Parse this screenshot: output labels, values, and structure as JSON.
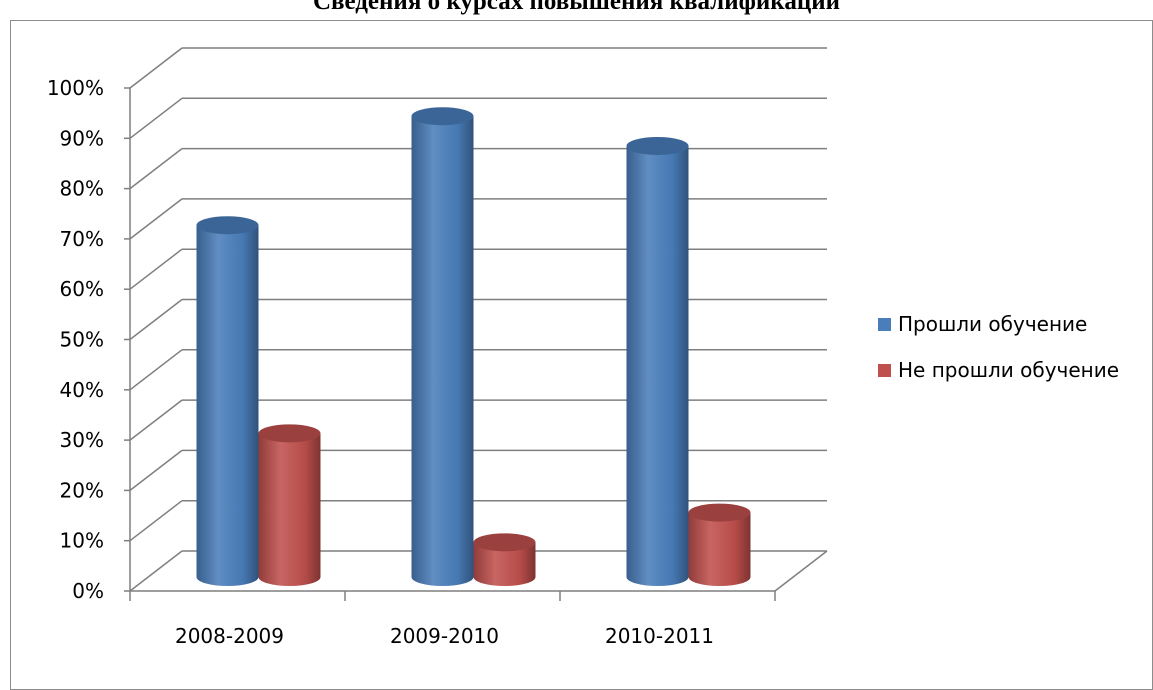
{
  "chart_data": {
    "type": "bar",
    "title": "Сведения о курсах повышения квалификации",
    "categories": [
      "2008-2009",
      "2009-2010",
      "2010-2011"
    ],
    "series": [
      {
        "name": "Прошли обучение",
        "values": [
          71,
          93,
          87
        ],
        "color": "#4a7ebb"
      },
      {
        "name": "Не прошли обучение",
        "values": [
          29,
          7,
          13
        ],
        "color": "#c0504d"
      }
    ],
    "ylim": [
      0,
      100
    ],
    "yticks": [
      "0%",
      "10%",
      "20%",
      "30%",
      "40%",
      "50%",
      "60%",
      "70%",
      "80%",
      "90%",
      "100%"
    ],
    "grid": true,
    "legend_position": "right",
    "three_d": true,
    "bar_shape": "cylinder"
  }
}
